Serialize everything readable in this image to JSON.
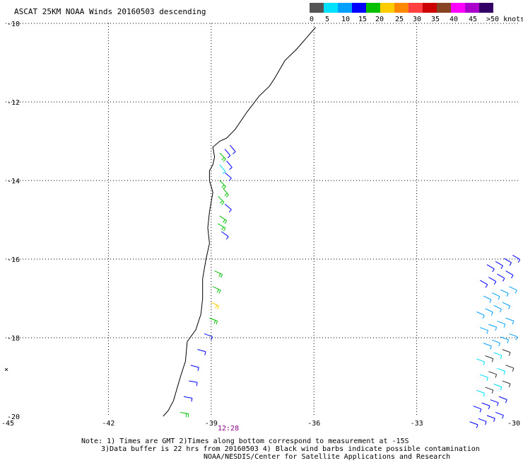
{
  "title": "ASCAT 25KM NOAA Winds 20160503 descending",
  "legend": {
    "colors": [
      "#555555",
      "#00e0ff",
      "#00a0ff",
      "#0000ff",
      "#00c000",
      "#ffcc00",
      "#ff8800",
      "#ff4040",
      "#cc0000",
      "#884422",
      "#ff00ff",
      "#aa00cc",
      "#330066"
    ],
    "labels": [
      "0",
      "5",
      "10",
      "15",
      "20",
      "25",
      "30",
      "35",
      "40",
      "45",
      ">50 knots"
    ]
  },
  "axes": {
    "lat_labels": [
      "-10",
      "-12",
      "-14",
      "-16",
      "-18",
      "-20"
    ],
    "lon_labels": [
      "-45",
      "-42",
      "-39",
      "-36",
      "-33",
      "-30"
    ]
  },
  "time_label": "12:28",
  "notes": [
    "Note: 1) Times are GMT 2)Times along bottom correspond to measurement at -15S",
    "3)Data buffer is 22 hrs from 20160503 4) Black wind barbs indicate possible contamination",
    "NOAA/NESDIS/Center for Satellite Applications and Research"
  ],
  "map": {
    "lat_range": [
      -20,
      -10
    ],
    "lon_range": [
      -45,
      -30
    ],
    "coastline": [
      [
        -35.95,
        -10.1
      ],
      [
        -36.2,
        -10.35
      ],
      [
        -36.5,
        -10.65
      ],
      [
        -36.85,
        -10.95
      ],
      [
        -37.15,
        -11.4
      ],
      [
        -37.3,
        -11.6
      ],
      [
        -37.6,
        -11.85
      ],
      [
        -37.95,
        -12.25
      ],
      [
        -38.3,
        -12.7
      ],
      [
        -38.55,
        -12.92
      ],
      [
        -38.75,
        -13.0
      ],
      [
        -38.95,
        -13.15
      ],
      [
        -38.9,
        -13.4
      ],
      [
        -38.95,
        -13.6
      ],
      [
        -39.05,
        -13.75
      ],
      [
        -39.05,
        -14.0
      ],
      [
        -38.95,
        -14.3
      ],
      [
        -39.0,
        -14.55
      ],
      [
        -39.05,
        -14.8
      ],
      [
        -39.1,
        -15.2
      ],
      [
        -39.05,
        -15.6
      ],
      [
        -39.15,
        -16.0
      ],
      [
        -39.25,
        -16.5
      ],
      [
        -39.25,
        -17.0
      ],
      [
        -39.3,
        -17.4
      ],
      [
        -39.45,
        -17.8
      ],
      [
        -39.7,
        -18.1
      ],
      [
        -39.75,
        -18.6
      ],
      [
        -39.9,
        -19.0
      ],
      [
        -40.1,
        -19.6
      ],
      [
        -40.25,
        -19.85
      ],
      [
        -40.4,
        -20.0
      ]
    ],
    "barbs_coastal": [
      {
        "lat": -13.1,
        "lon": -38.45,
        "speed": 12,
        "dir": 140
      },
      {
        "lat": -13.2,
        "lon": -38.6,
        "speed": 12,
        "dir": 140
      },
      {
        "lat": -13.3,
        "lon": -38.75,
        "speed": 16,
        "dir": 135
      },
      {
        "lat": -13.5,
        "lon": -38.55,
        "speed": 12,
        "dir": 140
      },
      {
        "lat": -13.6,
        "lon": -38.75,
        "speed": 8,
        "dir": 140
      },
      {
        "lat": -13.8,
        "lon": -38.6,
        "speed": 12,
        "dir": 130
      },
      {
        "lat": -14.0,
        "lon": -38.75,
        "speed": 16,
        "dir": 135
      },
      {
        "lat": -14.2,
        "lon": -38.65,
        "speed": 16,
        "dir": 140
      },
      {
        "lat": -14.4,
        "lon": -38.8,
        "speed": 18,
        "dir": 135
      },
      {
        "lat": -14.6,
        "lon": -38.6,
        "speed": 12,
        "dir": 130
      },
      {
        "lat": -14.9,
        "lon": -38.75,
        "speed": 18,
        "dir": 125
      },
      {
        "lat": -15.1,
        "lon": -38.8,
        "speed": 18,
        "dir": 120
      },
      {
        "lat": -15.3,
        "lon": -38.7,
        "speed": 12,
        "dir": 125
      },
      {
        "lat": -16.3,
        "lon": -38.9,
        "speed": 18,
        "dir": 115
      },
      {
        "lat": -16.7,
        "lon": -38.95,
        "speed": 18,
        "dir": 115
      },
      {
        "lat": -17.1,
        "lon": -39.0,
        "speed": 20,
        "dir": 115
      },
      {
        "lat": -17.5,
        "lon": -39.05,
        "speed": 16,
        "dir": 110
      },
      {
        "lat": -17.9,
        "lon": -39.2,
        "speed": 12,
        "dir": 110
      },
      {
        "lat": -18.3,
        "lon": -39.4,
        "speed": 12,
        "dir": 105
      },
      {
        "lat": -18.7,
        "lon": -39.6,
        "speed": 14,
        "dir": 105
      },
      {
        "lat": -19.1,
        "lon": -39.65,
        "speed": 12,
        "dir": 100
      },
      {
        "lat": -19.5,
        "lon": -39.8,
        "speed": 12,
        "dir": 100
      },
      {
        "lat": -19.9,
        "lon": -39.9,
        "speed": 18,
        "dir": 100
      }
    ],
    "barbs_offshore": [
      {
        "lat": -15.9,
        "lon": -30.2,
        "speed": 12,
        "dir": 120
      },
      {
        "lat": -16.3,
        "lon": -30.4,
        "speed": 10,
        "dir": 120
      },
      {
        "lat": -16.7,
        "lon": -30.3,
        "speed": 8,
        "dir": 115
      },
      {
        "lat": -17.1,
        "lon": -30.5,
        "speed": 8,
        "dir": 115
      },
      {
        "lat": -17.5,
        "lon": -30.4,
        "speed": 6,
        "dir": 110
      },
      {
        "lat": -17.9,
        "lon": -30.3,
        "speed": 6,
        "dir": 110
      },
      {
        "lat": -18.3,
        "lon": -30.5,
        "speed": 6,
        "dir": 110
      },
      {
        "lat": -18.7,
        "lon": -30.4,
        "speed": 4,
        "dir": 110
      },
      {
        "lat": -19.1,
        "lon": -30.5,
        "speed": 4,
        "dir": 110
      },
      {
        "lat": -19.5,
        "lon": -30.6,
        "speed": 10,
        "dir": 110
      },
      {
        "lat": -19.9,
        "lon": -30.7,
        "speed": 12,
        "dir": 110
      }
    ]
  }
}
